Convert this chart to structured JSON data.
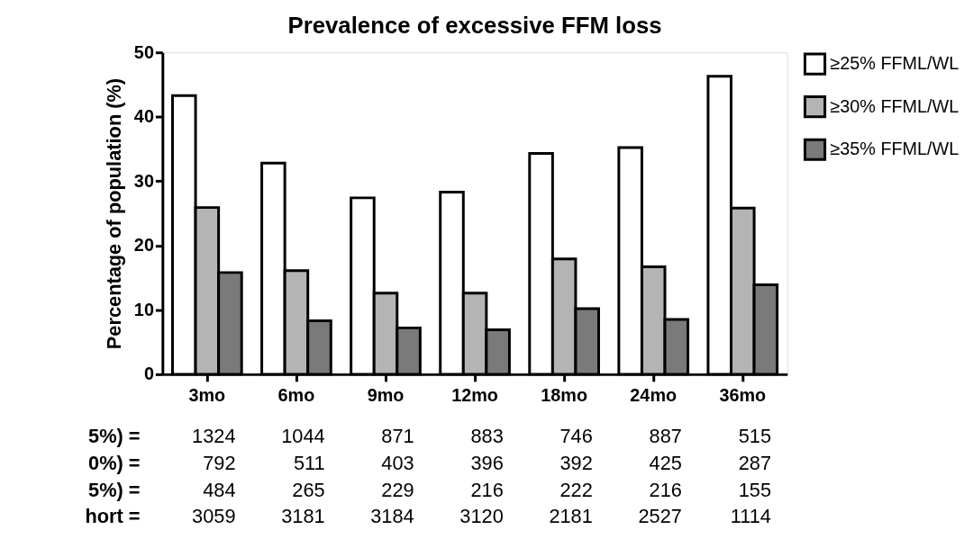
{
  "chart_data": {
    "type": "bar",
    "title": "Prevalence of excessive FFM loss",
    "ylabel": "Percentage of population (%)",
    "categories": [
      "3mo",
      "6mo",
      "9mo",
      "12mo",
      "18mo",
      "24mo",
      "36mo"
    ],
    "series": [
      {
        "name": "≥25% FFML/WL",
        "color": "#ffffff",
        "values": [
          43.3,
          32.8,
          27.4,
          28.3,
          34.3,
          35.2,
          46.3
        ]
      },
      {
        "name": "≥30% FFML/WL",
        "color": "#b4b4b4",
        "values": [
          25.9,
          16.1,
          12.6,
          12.6,
          17.9,
          16.7,
          25.8
        ]
      },
      {
        "name": "≥35% FFML/WL",
        "color": "#7a7a7a",
        "values": [
          15.8,
          8.3,
          7.2,
          6.9,
          10.2,
          8.5,
          13.9
        ]
      }
    ],
    "ylim": [
      0,
      50
    ],
    "yticks": [
      0,
      10,
      20,
      30,
      40,
      50
    ],
    "grid": false,
    "legend": "top right",
    "annotations": [
      "5%) =",
      "1324",
      "1044",
      "871",
      "883",
      "746",
      "887",
      "515",
      "0%) =",
      "792",
      "511",
      "403",
      "396",
      "392",
      "425",
      "287",
      "5%) =",
      "484",
      "265",
      "229",
      "216",
      "222",
      "216",
      "155",
      "hort =",
      "3059",
      "3181",
      "3184",
      "3120",
      "2181",
      "2527",
      "1114"
    ]
  }
}
